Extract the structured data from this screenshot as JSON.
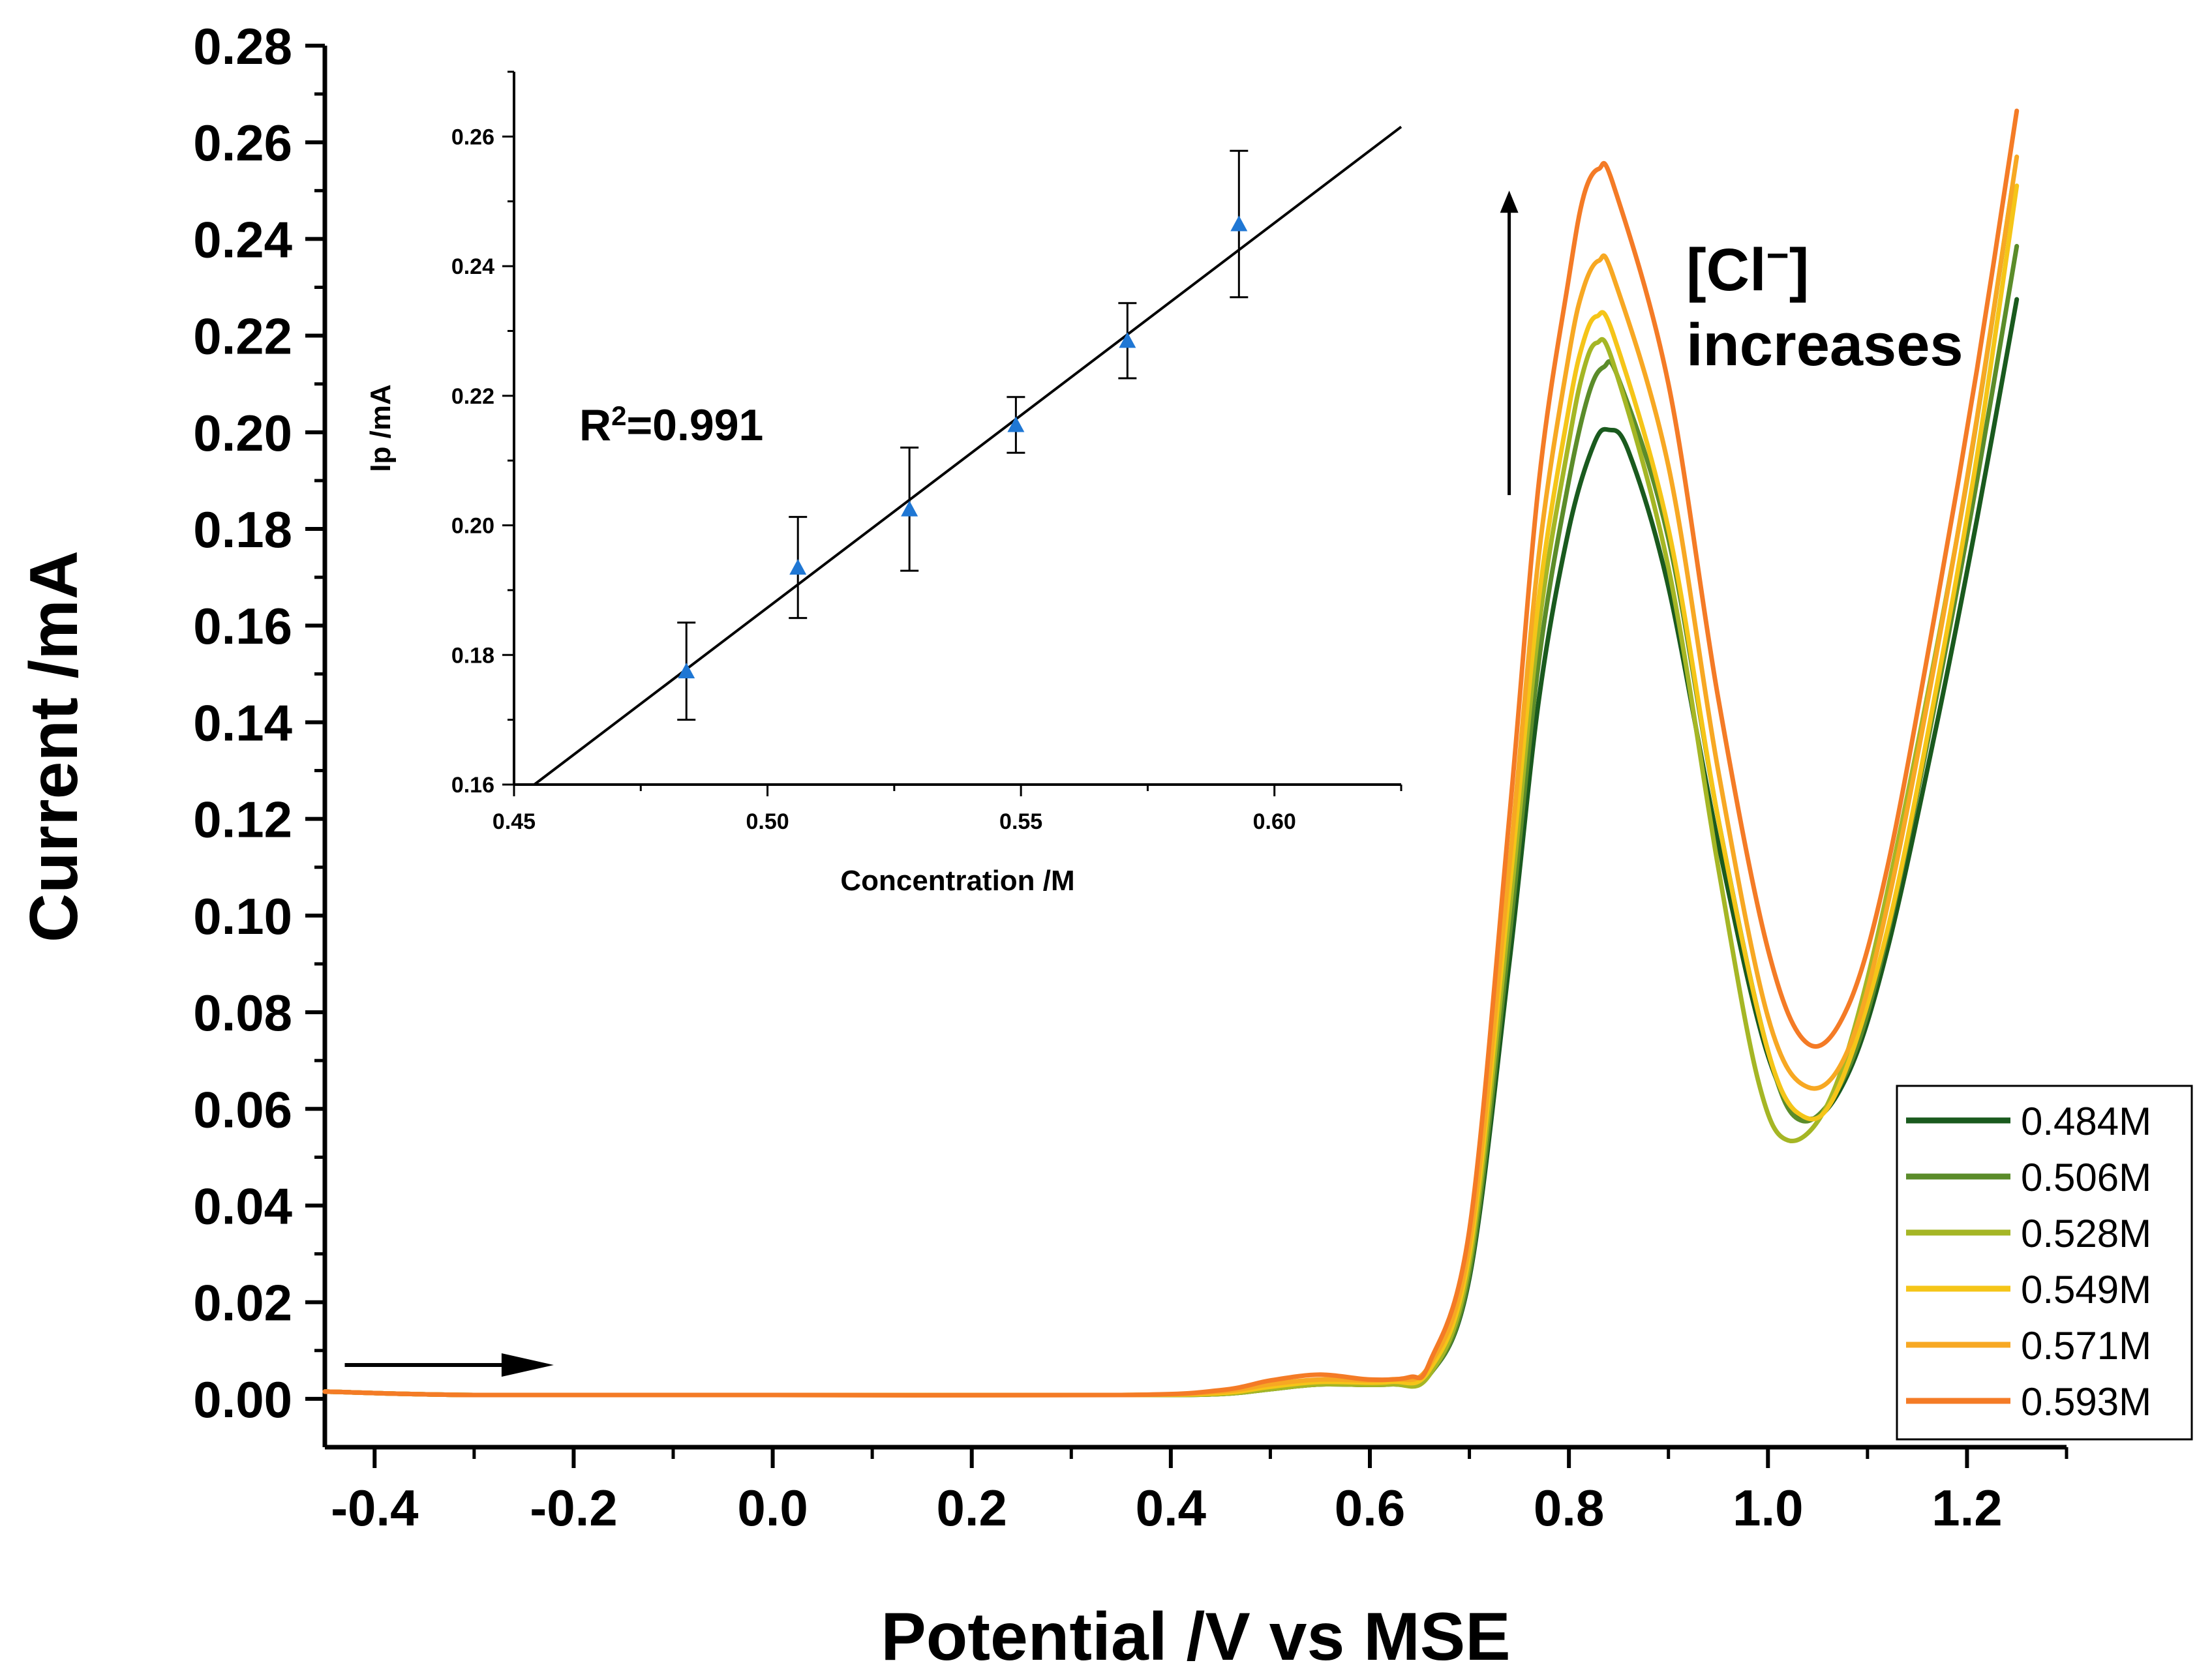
{
  "chart_data": [
    {
      "type": "line",
      "title": "",
      "xlabel": "Potential /V vs MSE",
      "ylabel": "Current /mA",
      "xlim": [
        -0.45,
        1.3
      ],
      "ylim": [
        -0.01,
        0.28
      ],
      "x_ticks": [
        -0.4,
        -0.2,
        0.0,
        0.2,
        0.4,
        0.6,
        0.8,
        1.0,
        1.2
      ],
      "x_tick_labels": [
        "-0.4",
        "-0.2",
        "0.0",
        "0.2",
        "0.4",
        "0.6",
        "0.8",
        "1.0",
        "1.2"
      ],
      "y_ticks": [
        0.0,
        0.02,
        0.04,
        0.06,
        0.08,
        0.1,
        0.12,
        0.14,
        0.16,
        0.18,
        0.2,
        0.22,
        0.24,
        0.26,
        0.28
      ],
      "y_tick_labels": [
        "0.00",
        "0.02",
        "0.04",
        "0.06",
        "0.08",
        "0.10",
        "0.12",
        "0.14",
        "0.16",
        "0.18",
        "0.20",
        "0.22",
        "0.24",
        "0.26",
        "0.28"
      ],
      "legend_position": "bottom-right",
      "series": [
        {
          "name": "0.484M",
          "color": "#1a5a1e",
          "points": [
            [
              -0.45,
              0.0015
            ],
            [
              -0.3,
              0.0008
            ],
            [
              0.0,
              0.0008
            ],
            [
              0.35,
              0.0008
            ],
            [
              0.45,
              0.001
            ],
            [
              0.5,
              0.002
            ],
            [
              0.55,
              0.003
            ],
            [
              0.62,
              0.003
            ],
            [
              0.66,
              0.005
            ],
            [
              0.7,
              0.025
            ],
            [
              0.74,
              0.09
            ],
            [
              0.77,
              0.145
            ],
            [
              0.8,
              0.18
            ],
            [
              0.825,
              0.1975
            ],
            [
              0.84,
              0.2005
            ],
            [
              0.86,
              0.196
            ],
            [
              0.9,
              0.168
            ],
            [
              0.95,
              0.115
            ],
            [
              1.0,
              0.071
            ],
            [
              1.04,
              0.058
            ],
            [
              1.08,
              0.067
            ],
            [
              1.12,
              0.093
            ],
            [
              1.17,
              0.14
            ],
            [
              1.21,
              0.182
            ],
            [
              1.25,
              0.2275
            ]
          ]
        },
        {
          "name": "0.506M",
          "color": "#5b8c2a",
          "points": [
            [
              -0.45,
              0.0015
            ],
            [
              -0.3,
              0.0008
            ],
            [
              0.0,
              0.0008
            ],
            [
              0.35,
              0.0008
            ],
            [
              0.45,
              0.001
            ],
            [
              0.5,
              0.002
            ],
            [
              0.55,
              0.003
            ],
            [
              0.62,
              0.003
            ],
            [
              0.66,
              0.005
            ],
            [
              0.7,
              0.026
            ],
            [
              0.74,
              0.095
            ],
            [
              0.77,
              0.153
            ],
            [
              0.8,
              0.19
            ],
            [
              0.82,
              0.208
            ],
            [
              0.835,
              0.2135
            ],
            [
              0.85,
              0.211
            ],
            [
              0.9,
              0.178
            ],
            [
              0.95,
              0.12
            ],
            [
              1.0,
              0.072
            ],
            [
              1.035,
              0.0575
            ],
            [
              1.08,
              0.068
            ],
            [
              1.12,
              0.096
            ],
            [
              1.17,
              0.146
            ],
            [
              1.21,
              0.19
            ],
            [
              1.25,
              0.2385
            ]
          ]
        },
        {
          "name": "0.528M",
          "color": "#a5b625",
          "points": [
            [
              -0.45,
              0.0015
            ],
            [
              -0.3,
              0.0008
            ],
            [
              0.0,
              0.0008
            ],
            [
              0.35,
              0.0008
            ],
            [
              0.45,
              0.001
            ],
            [
              0.5,
              0.002
            ],
            [
              0.55,
              0.003
            ],
            [
              0.62,
              0.003
            ],
            [
              0.66,
              0.005
            ],
            [
              0.7,
              0.028
            ],
            [
              0.74,
              0.1
            ],
            [
              0.77,
              0.16
            ],
            [
              0.8,
              0.198
            ],
            [
              0.815,
              0.213
            ],
            [
              0.828,
              0.2185
            ],
            [
              0.845,
              0.214
            ],
            [
              0.9,
              0.172
            ],
            [
              0.95,
              0.11
            ],
            [
              0.99,
              0.066
            ],
            [
              1.02,
              0.0535
            ],
            [
              1.06,
              0.061
            ],
            [
              1.1,
              0.087
            ],
            [
              1.15,
              0.135
            ],
            [
              1.2,
              0.19
            ],
            [
              1.245,
              0.25
            ]
          ]
        },
        {
          "name": "0.549M",
          "color": "#f5c518",
          "points": [
            [
              -0.45,
              0.0015
            ],
            [
              -0.3,
              0.0008
            ],
            [
              0.0,
              0.0008
            ],
            [
              0.35,
              0.0008
            ],
            [
              0.45,
              0.0012
            ],
            [
              0.5,
              0.0025
            ],
            [
              0.55,
              0.0035
            ],
            [
              0.62,
              0.0035
            ],
            [
              0.66,
              0.006
            ],
            [
              0.7,
              0.03
            ],
            [
              0.74,
              0.105
            ],
            [
              0.77,
              0.166
            ],
            [
              0.8,
              0.205
            ],
            [
              0.815,
              0.219
            ],
            [
              0.828,
              0.224
            ],
            [
              0.845,
              0.22
            ],
            [
              0.9,
              0.18
            ],
            [
              0.95,
              0.12
            ],
            [
              1.0,
              0.072
            ],
            [
              1.035,
              0.0585
            ],
            [
              1.07,
              0.064
            ],
            [
              1.12,
              0.097
            ],
            [
              1.17,
              0.148
            ],
            [
              1.21,
              0.195
            ],
            [
              1.25,
              0.251
            ]
          ]
        },
        {
          "name": "0.571M",
          "color": "#f7a823",
          "points": [
            [
              -0.45,
              0.0015
            ],
            [
              -0.3,
              0.0008
            ],
            [
              0.0,
              0.0008
            ],
            [
              0.35,
              0.0008
            ],
            [
              0.45,
              0.0015
            ],
            [
              0.5,
              0.003
            ],
            [
              0.55,
              0.004
            ],
            [
              0.62,
              0.004
            ],
            [
              0.66,
              0.007
            ],
            [
              0.7,
              0.032
            ],
            [
              0.74,
              0.11
            ],
            [
              0.77,
              0.175
            ],
            [
              0.8,
              0.216
            ],
            [
              0.815,
              0.23
            ],
            [
              0.83,
              0.2355
            ],
            [
              0.845,
              0.232
            ],
            [
              0.9,
              0.193
            ],
            [
              0.95,
              0.13
            ],
            [
              1.0,
              0.079
            ],
            [
              1.04,
              0.0645
            ],
            [
              1.08,
              0.072
            ],
            [
              1.12,
              0.102
            ],
            [
              1.17,
              0.155
            ],
            [
              1.21,
              0.203
            ],
            [
              1.25,
              0.257
            ]
          ]
        },
        {
          "name": "0.593M",
          "color": "#f47b26",
          "points": [
            [
              -0.45,
              0.0015
            ],
            [
              -0.3,
              0.0008
            ],
            [
              0.0,
              0.0008
            ],
            [
              0.35,
              0.0008
            ],
            [
              0.45,
              0.0018
            ],
            [
              0.5,
              0.0038
            ],
            [
              0.55,
              0.005
            ],
            [
              0.6,
              0.004
            ],
            [
              0.64,
              0.0045
            ],
            [
              0.66,
              0.0075
            ],
            [
              0.7,
              0.035
            ],
            [
              0.74,
              0.12
            ],
            [
              0.77,
              0.19
            ],
            [
              0.8,
              0.232
            ],
            [
              0.815,
              0.249
            ],
            [
              0.83,
              0.2545
            ],
            [
              0.845,
              0.251
            ],
            [
              0.9,
              0.21
            ],
            [
              0.95,
              0.145
            ],
            [
              1.0,
              0.093
            ],
            [
              1.04,
              0.0735
            ],
            [
              1.08,
              0.081
            ],
            [
              1.12,
              0.11
            ],
            [
              1.17,
              0.165
            ],
            [
              1.21,
              0.213
            ],
            [
              1.25,
              0.2665
            ]
          ]
        }
      ],
      "annotations": {
        "increase_label_line1": "[Cl",
        "increase_label_sup": "−",
        "increase_label_line1_end": "]",
        "increase_label_line2": "increases",
        "scan_arrow_from": [
          -0.43,
          0.007
        ],
        "scan_arrow_to": [
          -0.22,
          0.007
        ],
        "increase_arrow_from": [
          0.74,
          0.187
        ],
        "increase_arrow_to": [
          0.74,
          0.25
        ]
      }
    },
    {
      "type": "scatter",
      "title": "",
      "xlabel": "Concentration /M",
      "ylabel": "Ip /mA",
      "xlim": [
        0.45,
        0.625
      ],
      "ylim": [
        0.16,
        0.27
      ],
      "x_ticks": [
        0.45,
        0.5,
        0.55,
        0.6
      ],
      "x_tick_labels": [
        "0.45",
        "0.50",
        "0.55",
        "0.60"
      ],
      "y_ticks": [
        0.16,
        0.18,
        0.2,
        0.22,
        0.24,
        0.26
      ],
      "y_tick_labels": [
        "0.16",
        "0.18",
        "0.20",
        "0.22",
        "0.24",
        "0.26"
      ],
      "marker_color": "#1f77d4",
      "points": [
        {
          "x": 0.484,
          "y": 0.1775,
          "err": 0.0075
        },
        {
          "x": 0.506,
          "y": 0.1935,
          "err": 0.0078
        },
        {
          "x": 0.528,
          "y": 0.2025,
          "err": 0.0095
        },
        {
          "x": 0.549,
          "y": 0.2155,
          "err": 0.0043
        },
        {
          "x": 0.571,
          "y": 0.2285,
          "err": 0.0058
        },
        {
          "x": 0.593,
          "y": 0.2465,
          "err": 0.0113
        }
      ],
      "fit_line": {
        "x0": 0.454,
        "y0": 0.16,
        "x1": 0.625,
        "y1": 0.2615
      },
      "r2_label_base": "R",
      "r2_label_sup": "2",
      "r2_label_value": "=0.991"
    }
  ]
}
